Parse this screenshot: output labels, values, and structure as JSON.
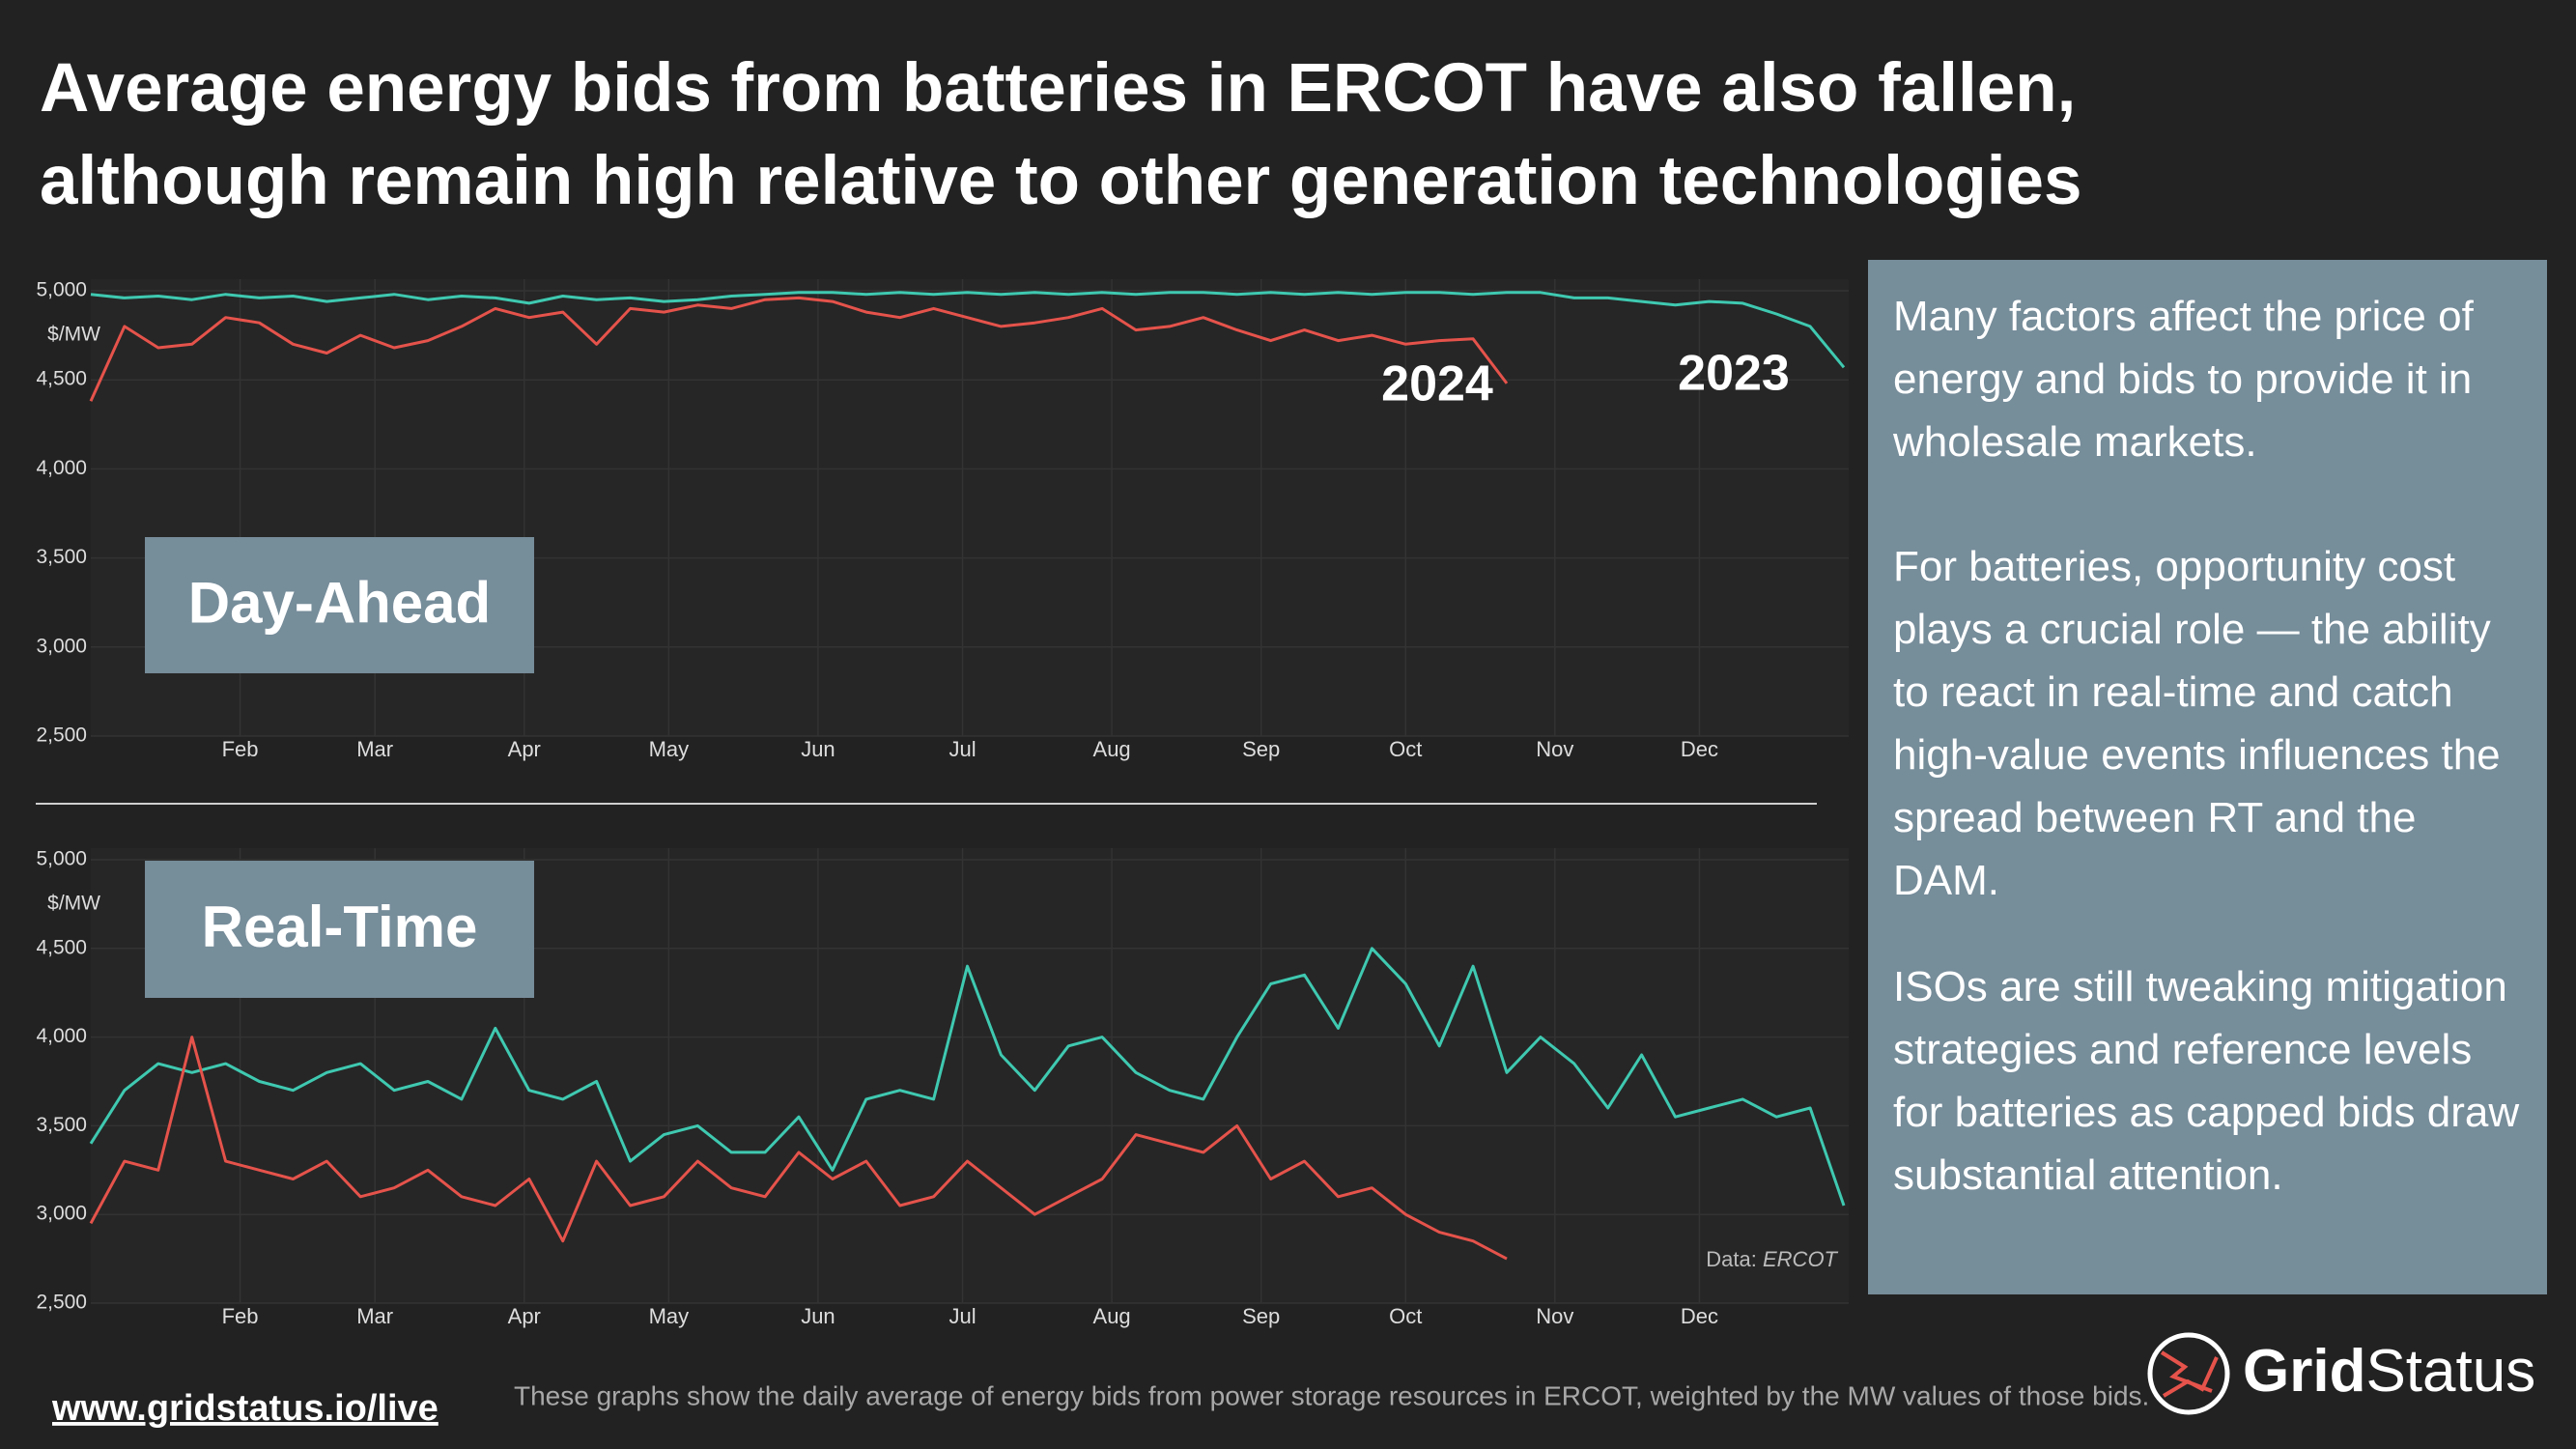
{
  "title_lines": [
    "Average energy bids from batteries in ERCOT have also fallen,",
    "although remain high relative to other generation technologies"
  ],
  "chart_data": [
    {
      "type": "line",
      "label": "Day-Ahead",
      "ylabel": "$/MW",
      "grid": true,
      "x": [
        1,
        8,
        15,
        22,
        29,
        36,
        43,
        50,
        57,
        64,
        71,
        78,
        85,
        92,
        99,
        106,
        113,
        120,
        127,
        134,
        141,
        148,
        155,
        162,
        169,
        176,
        183,
        190,
        197,
        204,
        211,
        218,
        225,
        232,
        239,
        246,
        253,
        260,
        267,
        274,
        281,
        288,
        295,
        302,
        309,
        316,
        323,
        330,
        337,
        344,
        351,
        358,
        365
      ],
      "xlim": [
        1,
        366
      ],
      "xticks": [
        {
          "value": 32,
          "label": "Feb"
        },
        {
          "value": 60,
          "label": "Mar"
        },
        {
          "value": 91,
          "label": "Apr"
        },
        {
          "value": 121,
          "label": "May"
        },
        {
          "value": 152,
          "label": "Jun"
        },
        {
          "value": 182,
          "label": "Jul"
        },
        {
          "value": 213,
          "label": "Aug"
        },
        {
          "value": 244,
          "label": "Sep"
        },
        {
          "value": 274,
          "label": "Oct"
        },
        {
          "value": 305,
          "label": "Nov"
        },
        {
          "value": 335,
          "label": "Dec"
        }
      ],
      "ylim": [
        2500,
        5000
      ],
      "yticks": [
        {
          "value": 2500,
          "label": "2,500"
        },
        {
          "value": 3000,
          "label": "3,000"
        },
        {
          "value": 3500,
          "label": "3,500"
        },
        {
          "value": 4000,
          "label": "4,000"
        },
        {
          "value": 4500,
          "label": "4,500"
        },
        {
          "value": 5000,
          "label": "5,000"
        }
      ],
      "series": [
        {
          "name": "2023",
          "color": "#3fc9b1",
          "values": [
            4980,
            4960,
            4970,
            4950,
            4980,
            4960,
            4970,
            4940,
            4960,
            4980,
            4950,
            4970,
            4960,
            4930,
            4970,
            4950,
            4960,
            4940,
            4950,
            4970,
            4980,
            4990,
            4990,
            4980,
            4990,
            4980,
            4990,
            4980,
            4990,
            4980,
            4990,
            4980,
            4990,
            4990,
            4980,
            4990,
            4980,
            4990,
            4980,
            4990,
            4990,
            4980,
            4990,
            4990,
            4960,
            4960,
            4940,
            4920,
            4940,
            4930,
            4870,
            4800,
            4570
          ]
        },
        {
          "name": "2024",
          "color": "#e5534b",
          "values": [
            4380,
            4800,
            4680,
            4700,
            4850,
            4820,
            4700,
            4650,
            4750,
            4680,
            4720,
            4800,
            4900,
            4850,
            4880,
            4700,
            4900,
            4880,
            4920,
            4900,
            4950,
            4960,
            4940,
            4880,
            4850,
            4900,
            4850,
            4800,
            4820,
            4850,
            4900,
            4780,
            4800,
            4850,
            4780,
            4720,
            4780,
            4720,
            4750,
            4700,
            4720,
            4730,
            4480,
            null,
            null,
            null,
            null,
            null,
            null,
            null,
            null,
            null,
            null
          ]
        }
      ]
    },
    {
      "type": "line",
      "label": "Real-Time",
      "ylabel": "$/MW",
      "grid": true,
      "x": [
        1,
        8,
        15,
        22,
        29,
        36,
        43,
        50,
        57,
        64,
        71,
        78,
        85,
        92,
        99,
        106,
        113,
        120,
        127,
        134,
        141,
        148,
        155,
        162,
        169,
        176,
        183,
        190,
        197,
        204,
        211,
        218,
        225,
        232,
        239,
        246,
        253,
        260,
        267,
        274,
        281,
        288,
        295,
        302,
        309,
        316,
        323,
        330,
        337,
        344,
        351,
        358,
        365
      ],
      "xlim": [
        1,
        366
      ],
      "xticks": [
        {
          "value": 32,
          "label": "Feb"
        },
        {
          "value": 60,
          "label": "Mar"
        },
        {
          "value": 91,
          "label": "Apr"
        },
        {
          "value": 121,
          "label": "May"
        },
        {
          "value": 152,
          "label": "Jun"
        },
        {
          "value": 182,
          "label": "Jul"
        },
        {
          "value": 213,
          "label": "Aug"
        },
        {
          "value": 244,
          "label": "Sep"
        },
        {
          "value": 274,
          "label": "Oct"
        },
        {
          "value": 305,
          "label": "Nov"
        },
        {
          "value": 335,
          "label": "Dec"
        }
      ],
      "ylim": [
        2500,
        5000
      ],
      "yticks": [
        {
          "value": 2500,
          "label": "2,500"
        },
        {
          "value": 3000,
          "label": "3,000"
        },
        {
          "value": 3500,
          "label": "3,500"
        },
        {
          "value": 4000,
          "label": "4,000"
        },
        {
          "value": 4500,
          "label": "4,500"
        },
        {
          "value": 5000,
          "label": "5,000"
        }
      ],
      "source_prefix": "Data:",
      "source_name": "ERCOT",
      "series": [
        {
          "color": "#3fc9b1",
          "values": [
            3400,
            3700,
            3850,
            3800,
            3850,
            3750,
            3700,
            3800,
            3850,
            3700,
            3750,
            3650,
            4050,
            3700,
            3650,
            3750,
            3300,
            3450,
            3500,
            3350,
            3350,
            3550,
            3250,
            3650,
            3700,
            3650,
            4400,
            3900,
            3700,
            3950,
            4000,
            3800,
            3700,
            3650,
            4000,
            4300,
            4350,
            4050,
            4500,
            4300,
            3950,
            4400,
            3800,
            4000,
            3850,
            3600,
            3900,
            3550,
            3600,
            3650,
            3550,
            3600,
            3050
          ]
        },
        {
          "color": "#e5534b",
          "values": [
            2950,
            3300,
            3250,
            4000,
            3300,
            3250,
            3200,
            3300,
            3100,
            3150,
            3250,
            3100,
            3050,
            3200,
            2850,
            3300,
            3050,
            3100,
            3300,
            3150,
            3100,
            3350,
            3200,
            3300,
            3050,
            3100,
            3300,
            3150,
            3000,
            3100,
            3200,
            3450,
            3400,
            3350,
            3500,
            3200,
            3300,
            3100,
            3150,
            3000,
            2900,
            2850,
            2750,
            null,
            null,
            null,
            null,
            null,
            null,
            null,
            null,
            null,
            null
          ]
        }
      ]
    }
  ],
  "panel": {
    "paragraphs": [
      "Many factors affect the price of energy and bids to provide it in wholesale markets.",
      "For batteries, opportunity cost plays a crucial role — the ability to react in real-time and catch high-value events influences the spread between RT and the DAM.",
      "ISOs are still tweaking mitigation strategies and reference levels for batteries as capped bids draw substantial attention."
    ]
  },
  "footer": {
    "link": "www.gridstatus.io/live",
    "caption": "These graphs show the daily average of energy bids from power storage resources in ERCOT, weighted by the MW values of those bids.",
    "logo_bold": "Grid",
    "logo_light": "Status"
  }
}
